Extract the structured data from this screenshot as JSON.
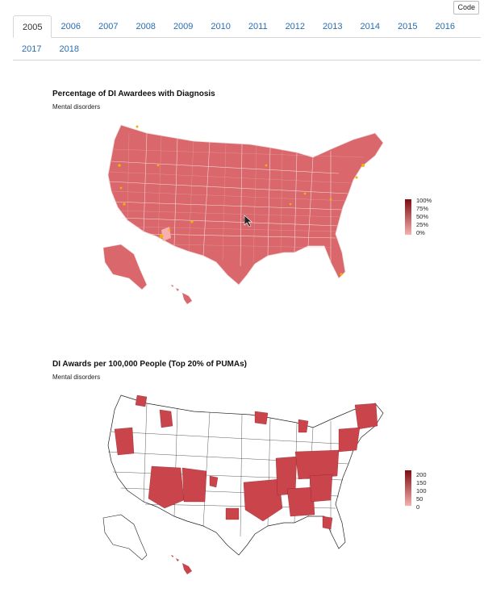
{
  "toolbar": {
    "code_label": "Code"
  },
  "tabs": {
    "row1": [
      "2005",
      "2006",
      "2007",
      "2008",
      "2009",
      "2010",
      "2011",
      "2012",
      "2013",
      "2014",
      "2015",
      "2016"
    ],
    "row2": [
      "2017",
      "2018"
    ],
    "active": "2005"
  },
  "map1": {
    "title": "Percentage of DI Awardees with Diagnosis",
    "subtitle": "Mental disorders",
    "legend": {
      "labels": [
        "100%",
        "75%",
        "50%",
        "25%",
        "0%"
      ]
    },
    "colors": {
      "fill": "#d9676b",
      "border": "#f3d6d6",
      "highlight": "#f0b400",
      "high": "#7d0d10",
      "low": "#f6b0b0"
    }
  },
  "map2": {
    "title": "DI Awards per 100,000 People (Top 20% of PUMAs)",
    "subtitle": "Mental disorders",
    "legend": {
      "labels": [
        "200",
        "150",
        "100",
        "50",
        "0"
      ]
    },
    "colors": {
      "fill": "#c9444b",
      "outline": "#222222",
      "high": "#7d0d10",
      "low": "#f6b0b0"
    }
  }
}
